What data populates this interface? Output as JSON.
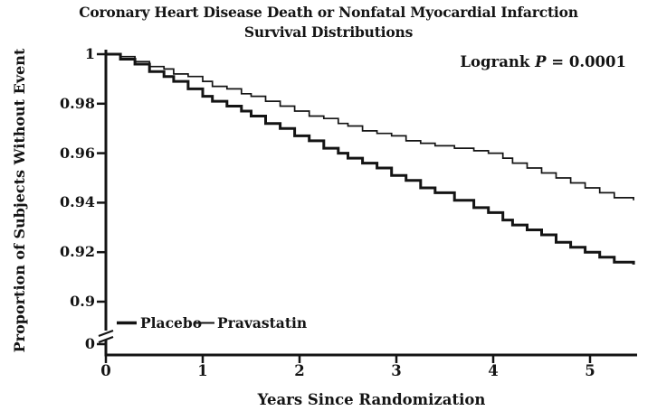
{
  "chart_data": {
    "type": "line",
    "subtype": "kaplan_meier_step_survival",
    "title": "Coronary Heart Disease Death or Nonfatal Myocardial Infarction",
    "subtitle": "Survival Distributions",
    "xlabel": "Years Since Randomization",
    "ylabel": "Proportion of Subjects Without Event",
    "annotation": {
      "prefix": "Logrank ",
      "p_symbol": "P",
      "value": " = 0.0001"
    },
    "x_ticks": [
      "0",
      "1",
      "2",
      "3",
      "4",
      "5"
    ],
    "y_ticks": [
      "1",
      "0.98",
      "0.96",
      "0.94",
      "0.92",
      "0.9",
      "0"
    ],
    "y_axis_break_between": [
      "0.9",
      "0"
    ],
    "xlim": [
      0,
      5.45
    ],
    "ylim_main": [
      0.9,
      1.0
    ],
    "grid": false,
    "legend_position": "inside-bottom-left",
    "line_color": "#141414",
    "series": [
      {
        "name": "Placebo",
        "line_style": "thick",
        "x": [
          0,
          0.15,
          0.3,
          0.45,
          0.6,
          0.7,
          0.85,
          1.0,
          1.1,
          1.25,
          1.4,
          1.5,
          1.65,
          1.8,
          1.95,
          2.1,
          2.25,
          2.4,
          2.5,
          2.65,
          2.8,
          2.95,
          3.1,
          3.25,
          3.4,
          3.6,
          3.8,
          3.95,
          4.1,
          4.2,
          4.35,
          4.5,
          4.65,
          4.8,
          4.95,
          5.1,
          5.25,
          5.45
        ],
        "y": [
          1,
          0.998,
          0.996,
          0.993,
          0.991,
          0.989,
          0.986,
          0.983,
          0.981,
          0.979,
          0.977,
          0.975,
          0.972,
          0.97,
          0.967,
          0.965,
          0.962,
          0.96,
          0.958,
          0.956,
          0.954,
          0.951,
          0.949,
          0.946,
          0.944,
          0.941,
          0.938,
          0.936,
          0.933,
          0.931,
          0.929,
          0.927,
          0.924,
          0.922,
          0.92,
          0.918,
          0.916,
          0.915
        ]
      },
      {
        "name": "Pravastatin",
        "line_style": "thin",
        "x": [
          0,
          0.15,
          0.3,
          0.45,
          0.6,
          0.7,
          0.85,
          1.0,
          1.1,
          1.25,
          1.4,
          1.5,
          1.65,
          1.8,
          1.95,
          2.1,
          2.25,
          2.4,
          2.5,
          2.65,
          2.8,
          2.95,
          3.1,
          3.25,
          3.4,
          3.6,
          3.8,
          3.95,
          4.1,
          4.2,
          4.35,
          4.5,
          4.65,
          4.8,
          4.95,
          5.1,
          5.25,
          5.45
        ],
        "y": [
          1,
          0.999,
          0.997,
          0.995,
          0.994,
          0.992,
          0.991,
          0.989,
          0.987,
          0.986,
          0.984,
          0.983,
          0.981,
          0.979,
          0.977,
          0.975,
          0.974,
          0.972,
          0.971,
          0.969,
          0.968,
          0.967,
          0.965,
          0.964,
          0.963,
          0.962,
          0.961,
          0.96,
          0.958,
          0.956,
          0.954,
          0.952,
          0.95,
          0.948,
          0.946,
          0.944,
          0.942,
          0.941
        ]
      }
    ]
  }
}
